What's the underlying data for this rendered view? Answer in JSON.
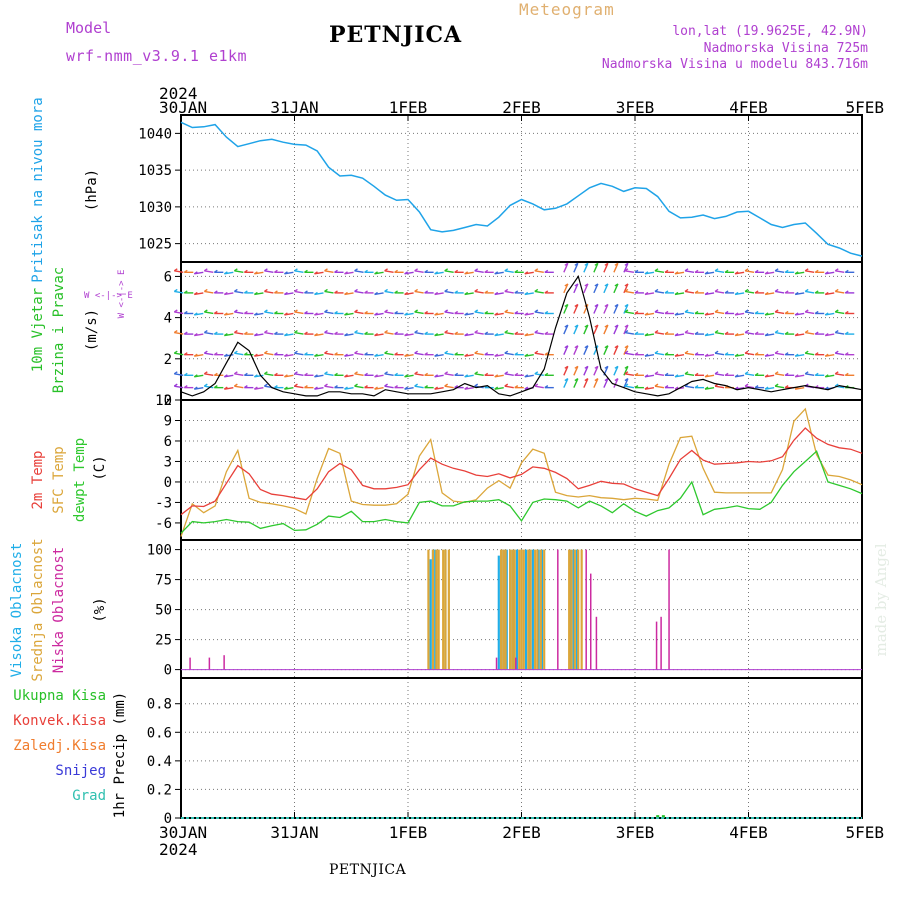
{
  "header": {
    "model_label": "Model",
    "model_name": "wrf-nmm_v3.9.1 e1km",
    "title": "PETNJICA",
    "chart_kind": "Meteogram",
    "coords": "lon,lat (19.9625E, 42.9N)",
    "elevation": "Nadmorska Visina 725m",
    "model_elevation": "Nadmorska Visina u modelu 843.716m",
    "bottom_title": "PETNJICA",
    "watermark": "made by Angel"
  },
  "colors": {
    "pressure": "#1fa3e8",
    "temp2m": "#e8403a",
    "sfc": "#dba63a",
    "dewpt": "#2ec82e",
    "high_cloud": "#20aee8",
    "mid_cloud": "#dba63a",
    "low_cloud": "#cc2aa0",
    "purple": "#b040d0",
    "wind_green": "#28c028",
    "orange": "#f07d2e",
    "snow": "#3a3ad8",
    "grad": "#30c0b0"
  },
  "chart_data": [
    {
      "type": "line",
      "panel": "pressure",
      "ylabel": "Pritisak na nivou mora",
      "unit": "(hPa)",
      "x_labels": [
        "30JAN",
        "31JAN",
        "1FEB",
        "2FEB",
        "3FEB",
        "4FEB",
        "5FEB"
      ],
      "x_label_year": "2024",
      "y_ticks": [
        1025,
        1030,
        1035,
        1040
      ],
      "ylim": [
        1022.5,
        1042.5
      ],
      "x": [
        0,
        0.1,
        0.2,
        0.3,
        0.4,
        0.5,
        0.6,
        0.7,
        0.8,
        0.9,
        1.0,
        1.1,
        1.2,
        1.3,
        1.4,
        1.5,
        1.6,
        1.7,
        1.8,
        1.9,
        2.0,
        2.1,
        2.2,
        2.3,
        2.4,
        2.5,
        2.6,
        2.7,
        2.8,
        2.9,
        3.0,
        3.1,
        3.2,
        3.3,
        3.4,
        3.5,
        3.6,
        3.7,
        3.8,
        3.9,
        4.0,
        4.1,
        4.2,
        4.3,
        4.4,
        4.5,
        4.6,
        4.7,
        4.8,
        4.9,
        5.0,
        5.1,
        5.2,
        5.3,
        5.4,
        5.5,
        5.6,
        5.7,
        5.8,
        5.9,
        6.0
      ],
      "series": [
        {
          "name": "",
          "values": [
            1041.5,
            1040.8,
            1040.9,
            1041.2,
            1039.5,
            1038.2,
            1038.6,
            1039.0,
            1039.2,
            1038.8,
            1038.5,
            1038.4,
            1037.6,
            1035.4,
            1034.2,
            1034.3,
            1033.9,
            1032.8,
            1031.6,
            1030.9,
            1031.0,
            1029.3,
            1026.9,
            1026.6,
            1026.8,
            1027.2,
            1027.6,
            1027.4,
            1028.6,
            1030.2,
            1031.0,
            1030.4,
            1029.6,
            1029.8,
            1030.4,
            1031.5,
            1032.6,
            1033.2,
            1032.8,
            1032.1,
            1032.6,
            1032.5,
            1031.4,
            1029.4,
            1028.5,
            1028.6,
            1028.9,
            1028.4,
            1028.7,
            1029.3,
            1029.4,
            1028.5,
            1027.6,
            1027.2,
            1027.6,
            1027.8,
            1026.4,
            1024.9,
            1024.4,
            1023.7,
            1023.3
          ]
        }
      ]
    },
    {
      "type": "line",
      "panel": "wind",
      "ylabel": "10m Vjetar",
      "ylabel2": "Brzina i Pravac",
      "unit": "(m/s)",
      "compass": "W <-|-> E",
      "compass_v": "S <-|-> N",
      "y_ticks": [
        0,
        2,
        4,
        6
      ],
      "ylim": [
        0,
        6.7
      ],
      "wind_rows": [
        0.6,
        1.2,
        2.2,
        3.2,
        4.2,
        5.2,
        6.2
      ],
      "x": [
        0,
        0.1,
        0.2,
        0.3,
        0.4,
        0.5,
        0.6,
        0.7,
        0.8,
        0.9,
        1.0,
        1.1,
        1.2,
        1.3,
        1.4,
        1.5,
        1.6,
        1.7,
        1.8,
        1.9,
        2.0,
        2.1,
        2.2,
        2.3,
        2.4,
        2.5,
        2.6,
        2.7,
        2.8,
        2.9,
        3.0,
        3.1,
        3.2,
        3.3,
        3.4,
        3.5,
        3.6,
        3.7,
        3.8,
        3.9,
        4.0,
        4.1,
        4.2,
        4.3,
        4.4,
        4.5,
        4.6,
        4.7,
        4.8,
        4.9,
        5.0,
        5.1,
        5.2,
        5.3,
        5.4,
        5.5,
        5.6,
        5.7,
        5.8,
        5.9,
        6.0
      ],
      "series": [
        {
          "name": "",
          "values": [
            0.4,
            0.2,
            0.4,
            0.8,
            1.8,
            2.8,
            2.4,
            1.2,
            0.6,
            0.4,
            0.3,
            0.2,
            0.2,
            0.4,
            0.4,
            0.3,
            0.3,
            0.2,
            0.5,
            0.4,
            0.3,
            0.3,
            0.3,
            0.4,
            0.5,
            0.8,
            0.6,
            0.7,
            0.3,
            0.2,
            0.4,
            0.6,
            1.5,
            3.5,
            5.2,
            6.0,
            4.0,
            1.5,
            0.8,
            0.6,
            0.4,
            0.3,
            0.2,
            0.3,
            0.6,
            0.9,
            1.0,
            0.8,
            0.7,
            0.5,
            0.6,
            0.5,
            0.4,
            0.5,
            0.6,
            0.7,
            0.6,
            0.5,
            0.7,
            0.6,
            0.5
          ]
        }
      ]
    },
    {
      "type": "line",
      "panel": "temperature",
      "ylabel_2m": "2m Temp",
      "ylabel_sfc": "SFC Temp",
      "ylabel_dewpt": "dewpt Temp",
      "unit": "(C)",
      "y_ticks": [
        -6,
        -3,
        0,
        3,
        6,
        9,
        12
      ],
      "ylim": [
        -8.5,
        12
      ],
      "x": [
        0,
        0.1,
        0.2,
        0.3,
        0.4,
        0.5,
        0.6,
        0.7,
        0.8,
        0.9,
        1.0,
        1.1,
        1.2,
        1.3,
        1.4,
        1.5,
        1.6,
        1.7,
        1.8,
        1.9,
        2.0,
        2.1,
        2.2,
        2.3,
        2.4,
        2.5,
        2.6,
        2.7,
        2.8,
        2.9,
        3.0,
        3.1,
        3.2,
        3.3,
        3.4,
        3.5,
        3.6,
        3.7,
        3.8,
        3.9,
        4.0,
        4.1,
        4.2,
        4.3,
        4.4,
        4.5,
        4.6,
        4.7,
        4.8,
        4.9,
        5.0,
        5.1,
        5.2,
        5.3,
        5.4,
        5.5,
        5.6,
        5.7,
        5.8,
        5.9,
        6.0
      ],
      "series": [
        {
          "name": "2m Temp",
          "values": [
            -4.8,
            -3.5,
            -3.6,
            -2.8,
            -0.2,
            2.4,
            1.2,
            -1.1,
            -1.8,
            -2.0,
            -2.3,
            -2.6,
            -1.0,
            1.5,
            2.7,
            1.8,
            -0.5,
            -1.0,
            -1.0,
            -0.8,
            -0.4,
            1.8,
            3.5,
            2.6,
            2.0,
            1.6,
            1.0,
            0.8,
            1.2,
            0.6,
            1.1,
            2.2,
            2.0,
            1.4,
            0.5,
            -1.0,
            -0.5,
            0.1,
            -0.2,
            -0.3,
            -1.0,
            -1.5,
            -2.0,
            0.5,
            3.3,
            4.6,
            3.2,
            2.6,
            2.7,
            2.8,
            3.0,
            2.9,
            3.1,
            3.7,
            6.1,
            7.9,
            6.4,
            5.5,
            5.0,
            4.8,
            4.2
          ]
        },
        {
          "name": "SFC Temp",
          "values": [
            -8.0,
            -3.2,
            -4.5,
            -3.5,
            1.5,
            4.6,
            -2.4,
            -3.0,
            -3.2,
            -3.5,
            -3.9,
            -4.7,
            0.5,
            4.9,
            4.2,
            -2.8,
            -3.3,
            -3.4,
            -3.4,
            -3.2,
            -1.8,
            3.8,
            6.2,
            -1.6,
            -2.8,
            -3.0,
            -2.6,
            -0.9,
            0.2,
            -0.9,
            2.8,
            4.8,
            4.2,
            -1.5,
            -2.0,
            -2.2,
            -2.0,
            -2.3,
            -2.4,
            -2.6,
            -2.4,
            -2.5,
            -2.7,
            2.6,
            6.5,
            6.7,
            2.0,
            -1.5,
            -1.6,
            -1.6,
            -1.6,
            -1.6,
            -1.6,
            1.8,
            8.9,
            10.7,
            4.0,
            1.0,
            0.8,
            0.3,
            -0.4
          ]
        },
        {
          "name": "dewpt Temp",
          "values": [
            -7.5,
            -5.8,
            -6.0,
            -5.8,
            -5.5,
            -5.8,
            -5.9,
            -6.8,
            -6.4,
            -6.1,
            -7.1,
            -7.0,
            -6.2,
            -5.0,
            -5.2,
            -4.3,
            -5.8,
            -5.8,
            -5.5,
            -5.8,
            -6.0,
            -3.0,
            -2.8,
            -3.5,
            -3.5,
            -2.9,
            -2.8,
            -2.8,
            -2.6,
            -3.5,
            -5.7,
            -3.0,
            -2.5,
            -2.6,
            -2.8,
            -3.8,
            -2.8,
            -3.5,
            -4.5,
            -3.2,
            -4.3,
            -5.0,
            -4.2,
            -3.8,
            -2.4,
            0.0,
            -4.8,
            -4.0,
            -3.8,
            -3.5,
            -3.9,
            -4.0,
            -3.0,
            -0.5,
            1.5,
            3.0,
            4.5,
            0.0,
            -0.5,
            -1.0,
            -1.7
          ]
        }
      ]
    },
    {
      "type": "bar",
      "panel": "clouds",
      "ylabel_high": "Visoka Oblacnost",
      "ylabel_mid": "Srednja Oblacnost",
      "ylabel_low": "Niska Oblacnost",
      "unit": "(%)",
      "y_ticks": [
        0,
        25,
        50,
        75,
        100
      ],
      "ylim": [
        -7,
        108
      ],
      "series": [
        {
          "name": "Visoka Oblacnost",
          "x": [
            2.2,
            2.22,
            2.24,
            2.33,
            2.8,
            2.84,
            2.87,
            2.9,
            2.93,
            2.96,
            3.0,
            3.04,
            3.07,
            3.1,
            3.15,
            3.18,
            3.43,
            3.46,
            3.49
          ],
          "values": [
            92,
            100,
            100,
            100,
            95,
            100,
            100,
            100,
            100,
            100,
            100,
            100,
            100,
            100,
            100,
            100,
            100,
            100,
            100
          ]
        },
        {
          "name": "Srednja Oblacnost",
          "x": [
            2.18,
            2.22,
            2.25,
            2.27,
            2.31,
            2.33,
            2.36,
            2.82,
            2.84,
            2.86,
            2.9,
            2.92,
            2.94,
            2.98,
            3.0,
            3.02,
            3.06,
            3.08,
            3.12,
            3.14,
            3.17,
            3.2,
            3.42,
            3.44,
            3.47,
            3.5,
            3.53
          ],
          "values": [
            100,
            100,
            100,
            100,
            100,
            100,
            100,
            100,
            100,
            100,
            100,
            100,
            100,
            100,
            100,
            100,
            100,
            100,
            100,
            100,
            100,
            100,
            100,
            100,
            100,
            100,
            100
          ]
        },
        {
          "name": "Niska Oblacnost",
          "x": [
            0.08,
            0.25,
            0.38,
            2.78,
            2.95,
            3.32,
            3.57,
            3.61,
            3.66,
            4.19,
            4.23,
            4.3
          ],
          "values": [
            10,
            10,
            12,
            10,
            10,
            100,
            100,
            80,
            44,
            40,
            44,
            100
          ]
        }
      ]
    },
    {
      "type": "bar",
      "panel": "precip",
      "ylabel": "1hr Precip",
      "unit": "(mm)",
      "legend": [
        "Ukupna Kisa",
        "Konvek.Kisa",
        "Zaledj.Kisa",
        "Snijeg",
        "Grad"
      ],
      "y_ticks": [
        0,
        0.2,
        0.4,
        0.6,
        0.8
      ],
      "ylim": [
        0,
        0.98
      ],
      "series": [
        {
          "name": "Ukupna Kisa",
          "x": [
            4.2,
            4.25
          ],
          "values": [
            0.02,
            0.02
          ]
        }
      ]
    }
  ]
}
